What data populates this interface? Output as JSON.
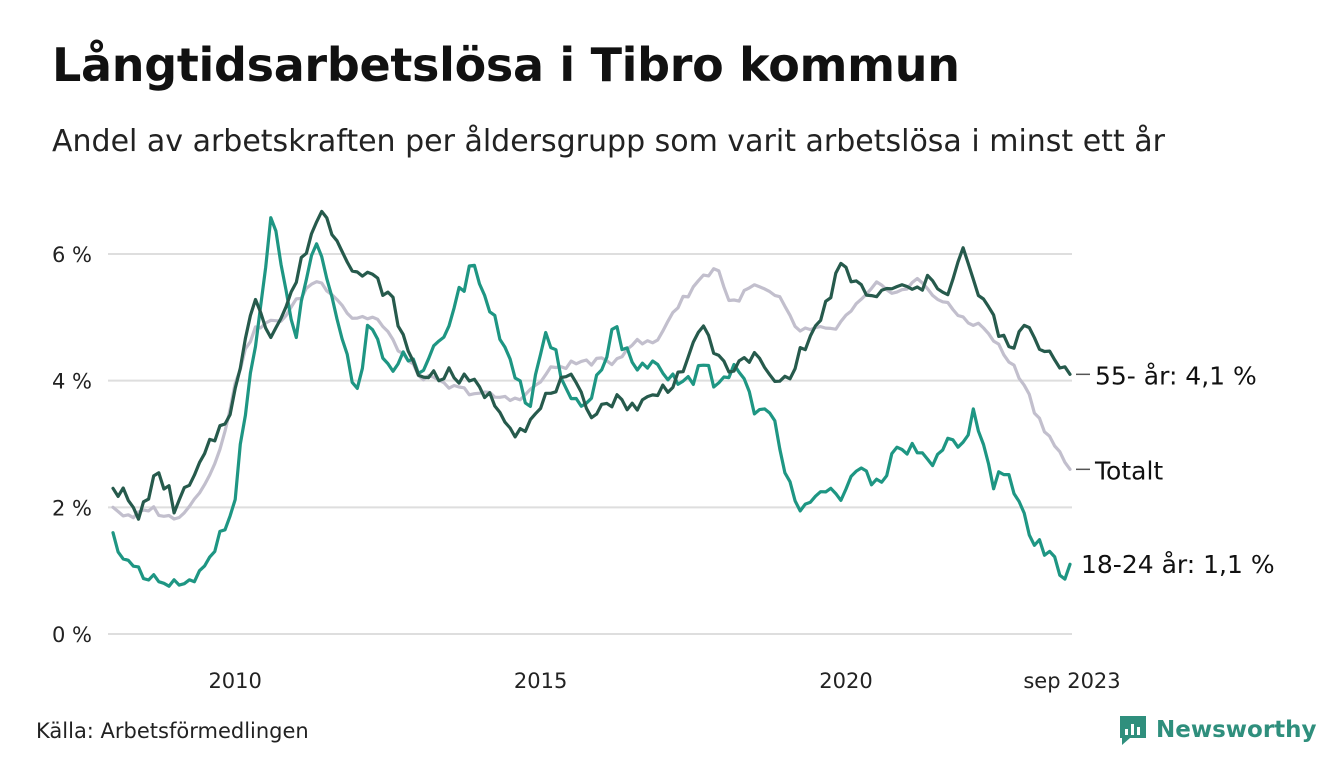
{
  "title": "Långtidsarbetslösa i Tibro kommun",
  "subtitle": "Andel av arbetskraften per åldersgrupp som varit arbetslösa i minst ett år",
  "source": "Källa: Arbetsförmedlingen",
  "brand": "Newsworthy",
  "colors": {
    "older": "#265a4c",
    "total": "#c2bfcd",
    "young": "#1e9683",
    "grid": "#dedede",
    "brand": "#2f8f7d"
  },
  "chart_data": {
    "type": "line",
    "x_unit": "year (decimal, monthly data)",
    "x_start": 2008.0,
    "x_end": 2023.667,
    "step": 0.0833,
    "ylim": [
      0,
      7
    ],
    "yticks": [
      {
        "value": 0,
        "label": "0 %"
      },
      {
        "value": 2,
        "label": "2 %"
      },
      {
        "value": 4,
        "label": "4 %"
      },
      {
        "value": 6,
        "label": "6 %"
      }
    ],
    "xticks": [
      {
        "value": 2010,
        "label": "2010"
      },
      {
        "value": 2015,
        "label": "2015"
      },
      {
        "value": 2020,
        "label": "2020"
      },
      {
        "value": 2023.667,
        "label": "sep 2023"
      }
    ],
    "grid": "horizontal",
    "series": [
      {
        "name": "Totalt",
        "label": "Totalt",
        "color_key": "total",
        "anchors": [
          [
            2008.0,
            2.0
          ],
          [
            2008.3,
            1.8
          ],
          [
            2008.6,
            2.0
          ],
          [
            2009.0,
            1.8
          ],
          [
            2009.4,
            2.2
          ],
          [
            2009.8,
            3.0
          ],
          [
            2010.0,
            4.0
          ],
          [
            2010.3,
            4.8
          ],
          [
            2010.8,
            5.0
          ],
          [
            2011.3,
            5.6
          ],
          [
            2011.6,
            5.4
          ],
          [
            2011.9,
            5.0
          ],
          [
            2012.3,
            5.0
          ],
          [
            2012.6,
            4.6
          ],
          [
            2013.0,
            4.1
          ],
          [
            2013.5,
            3.9
          ],
          [
            2014.0,
            3.8
          ],
          [
            2014.5,
            3.7
          ],
          [
            2014.8,
            3.8
          ],
          [
            2015.2,
            4.2
          ],
          [
            2015.7,
            4.3
          ],
          [
            2016.2,
            4.3
          ],
          [
            2016.5,
            4.6
          ],
          [
            2016.9,
            4.6
          ],
          [
            2017.1,
            5.0
          ],
          [
            2017.6,
            5.6
          ],
          [
            2017.9,
            5.8
          ],
          [
            2018.1,
            5.2
          ],
          [
            2018.5,
            5.5
          ],
          [
            2018.9,
            5.3
          ],
          [
            2019.2,
            4.8
          ],
          [
            2019.5,
            4.8
          ],
          [
            2019.8,
            4.8
          ],
          [
            2020.2,
            5.2
          ],
          [
            2020.5,
            5.5
          ],
          [
            2020.9,
            5.4
          ],
          [
            2021.2,
            5.6
          ],
          [
            2021.5,
            5.3
          ],
          [
            2021.9,
            5.0
          ],
          [
            2022.3,
            4.8
          ],
          [
            2022.6,
            4.4
          ],
          [
            2022.9,
            4.0
          ],
          [
            2023.1,
            3.5
          ],
          [
            2023.4,
            3.0
          ],
          [
            2023.667,
            2.6
          ]
        ],
        "last_value_label": "Totalt"
      },
      {
        "name": "55- år",
        "label": "55- år: 4,1 %",
        "color_key": "older",
        "anchors": [
          [
            2008.0,
            2.3
          ],
          [
            2008.2,
            2.2
          ],
          [
            2008.4,
            1.8
          ],
          [
            2008.7,
            2.5
          ],
          [
            2008.9,
            2.3
          ],
          [
            2009.0,
            2.0
          ],
          [
            2009.3,
            2.4
          ],
          [
            2009.6,
            3.0
          ],
          [
            2009.9,
            3.5
          ],
          [
            2010.1,
            4.2
          ],
          [
            2010.3,
            5.4
          ],
          [
            2010.6,
            4.7
          ],
          [
            2010.9,
            5.3
          ],
          [
            2011.2,
            6.2
          ],
          [
            2011.4,
            6.7
          ],
          [
            2011.7,
            6.2
          ],
          [
            2012.0,
            5.7
          ],
          [
            2012.3,
            5.6
          ],
          [
            2012.6,
            5.2
          ],
          [
            2012.8,
            4.5
          ],
          [
            2013.0,
            4.1
          ],
          [
            2013.5,
            4.1
          ],
          [
            2014.0,
            3.9
          ],
          [
            2014.3,
            3.6
          ],
          [
            2014.6,
            3.2
          ],
          [
            2014.9,
            3.4
          ],
          [
            2015.2,
            3.9
          ],
          [
            2015.5,
            4.0
          ],
          [
            2015.8,
            3.5
          ],
          [
            2016.2,
            3.7
          ],
          [
            2016.6,
            3.6
          ],
          [
            2016.9,
            3.8
          ],
          [
            2017.2,
            4.0
          ],
          [
            2017.5,
            4.5
          ],
          [
            2017.7,
            4.9
          ],
          [
            2017.9,
            4.3
          ],
          [
            2018.2,
            4.2
          ],
          [
            2018.5,
            4.4
          ],
          [
            2018.8,
            4.0
          ],
          [
            2019.0,
            4.0
          ],
          [
            2019.3,
            4.5
          ],
          [
            2019.6,
            5.0
          ],
          [
            2019.9,
            5.8
          ],
          [
            2020.2,
            5.5
          ],
          [
            2020.5,
            5.3
          ],
          [
            2020.8,
            5.5
          ],
          [
            2021.1,
            5.4
          ],
          [
            2021.4,
            5.6
          ],
          [
            2021.7,
            5.4
          ],
          [
            2021.9,
            6.1
          ],
          [
            2022.1,
            5.5
          ],
          [
            2022.4,
            5.0
          ],
          [
            2022.7,
            4.4
          ],
          [
            2022.9,
            4.9
          ],
          [
            2023.1,
            4.6
          ],
          [
            2023.4,
            4.4
          ],
          [
            2023.667,
            4.1
          ]
        ],
        "last_value_label": "4,1 %"
      },
      {
        "name": "18-24 år",
        "label": "18-24 år: 1,1 %",
        "color_key": "young",
        "anchors": [
          [
            2008.0,
            1.6
          ],
          [
            2008.3,
            1.0
          ],
          [
            2008.6,
            0.8
          ],
          [
            2008.9,
            0.8
          ],
          [
            2009.2,
            0.7
          ],
          [
            2009.5,
            1.0
          ],
          [
            2009.8,
            1.7
          ],
          [
            2010.0,
            2.2
          ],
          [
            2010.2,
            3.8
          ],
          [
            2010.4,
            5.0
          ],
          [
            2010.6,
            6.6
          ],
          [
            2010.8,
            5.5
          ],
          [
            2011.0,
            4.7
          ],
          [
            2011.3,
            6.3
          ],
          [
            2011.5,
            5.5
          ],
          [
            2011.8,
            4.4
          ],
          [
            2012.0,
            3.8
          ],
          [
            2012.2,
            5.0
          ],
          [
            2012.5,
            4.2
          ],
          [
            2012.8,
            4.5
          ],
          [
            2013.0,
            4.0
          ],
          [
            2013.3,
            4.5
          ],
          [
            2013.6,
            5.2
          ],
          [
            2013.9,
            5.9
          ],
          [
            2014.2,
            5.0
          ],
          [
            2014.5,
            4.4
          ],
          [
            2014.8,
            3.5
          ],
          [
            2015.1,
            4.7
          ],
          [
            2015.4,
            4.0
          ],
          [
            2015.7,
            3.5
          ],
          [
            2016.0,
            4.2
          ],
          [
            2016.2,
            4.9
          ],
          [
            2016.5,
            4.2
          ],
          [
            2016.8,
            4.2
          ],
          [
            2017.1,
            4.0
          ],
          [
            2017.4,
            4.0
          ],
          [
            2017.7,
            4.2
          ],
          [
            2017.9,
            3.9
          ],
          [
            2018.2,
            4.3
          ],
          [
            2018.5,
            3.6
          ],
          [
            2018.8,
            3.4
          ],
          [
            2019.0,
            2.5
          ],
          [
            2019.3,
            2.0
          ],
          [
            2019.6,
            2.4
          ],
          [
            2019.9,
            2.0
          ],
          [
            2020.2,
            2.6
          ],
          [
            2020.5,
            2.4
          ],
          [
            2020.8,
            2.8
          ],
          [
            2021.1,
            3.0
          ],
          [
            2021.4,
            2.6
          ],
          [
            2021.7,
            3.0
          ],
          [
            2021.9,
            2.9
          ],
          [
            2022.1,
            3.6
          ],
          [
            2022.4,
            2.3
          ],
          [
            2022.6,
            2.6
          ],
          [
            2022.9,
            1.9
          ],
          [
            2023.1,
            1.4
          ],
          [
            2023.4,
            1.2
          ],
          [
            2023.55,
            0.95
          ],
          [
            2023.667,
            1.1
          ]
        ],
        "last_value_label": "1,1 %"
      }
    ]
  }
}
